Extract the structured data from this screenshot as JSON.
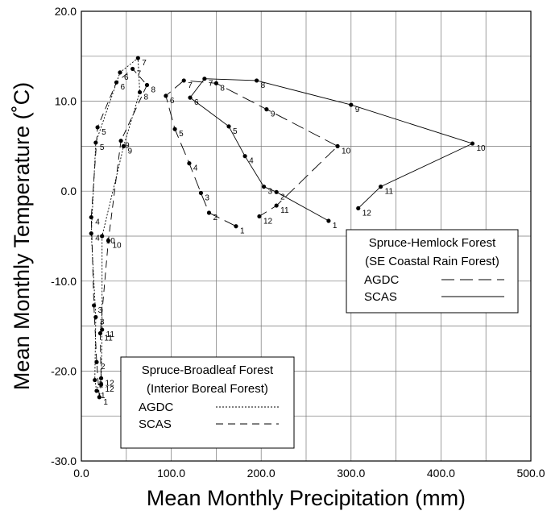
{
  "chart_data": {
    "type": "line",
    "xlabel": "Mean Monthly Precipitation (mm)",
    "ylabel": "Mean Monthly Temperature (˚C)",
    "xlim": [
      0,
      500
    ],
    "ylim": [
      -30,
      20
    ],
    "x_ticks": [
      0,
      100,
      200,
      300,
      400,
      500
    ],
    "x_tick_labels": [
      "0.0",
      "100.0",
      "200.0",
      "300.0",
      "400.0",
      "500.0"
    ],
    "y_ticks": [
      20,
      10,
      0,
      -10,
      -20,
      -30
    ],
    "y_tick_labels": [
      "20.0",
      "10.0",
      "0.0",
      "-10.0",
      "-20.0",
      "-30.0"
    ],
    "x_minor_step": 50,
    "y_minor_step": 5,
    "grid": true,
    "series": [
      {
        "name": "Spruce-Broadleaf AGDC",
        "dash": "dotted",
        "points": [
          {
            "m": "1",
            "x": 17,
            "y": -22.2
          },
          {
            "m": "2",
            "x": 15,
            "y": -21.0
          },
          {
            "m": "3",
            "x": 16,
            "y": -14.0
          },
          {
            "m": "4",
            "x": 11,
            "y": -4.7
          },
          {
            "m": "5",
            "x": 16,
            "y": 5.4
          },
          {
            "m": "6",
            "x": 43,
            "y": 13.2
          },
          {
            "m": "7",
            "x": 63,
            "y": 14.8
          },
          {
            "m": "8",
            "x": 65,
            "y": 11.0
          },
          {
            "m": "9",
            "x": 47,
            "y": 5.0
          },
          {
            "m": "10",
            "x": 23,
            "y": -5.0
          },
          {
            "m": "11",
            "x": 23,
            "y": -15.4
          },
          {
            "m": "12",
            "x": 22,
            "y": -20.8
          },
          {
            "m": "",
            "x": 17,
            "y": -22.2
          }
        ]
      },
      {
        "name": "Spruce-Broadleaf SCAS",
        "dash": "dashed",
        "points": [
          {
            "m": "1",
            "x": 20,
            "y": -22.9
          },
          {
            "m": "2",
            "x": 17,
            "y": -19.0
          },
          {
            "m": "3",
            "x": 14,
            "y": -12.7
          },
          {
            "m": "4",
            "x": 11,
            "y": -2.9
          },
          {
            "m": "5",
            "x": 18,
            "y": 7.1
          },
          {
            "m": "6",
            "x": 39,
            "y": 12.1
          },
          {
            "m": "7",
            "x": 57,
            "y": 13.6
          },
          {
            "m": "8",
            "x": 73,
            "y": 11.8
          },
          {
            "m": "9",
            "x": 44,
            "y": 5.6
          },
          {
            "m": "10",
            "x": 30,
            "y": -5.5
          },
          {
            "m": "11",
            "x": 21,
            "y": -15.8
          },
          {
            "m": "12",
            "x": 22,
            "y": -21.5
          },
          {
            "m": "",
            "x": 20,
            "y": -22.9
          }
        ]
      },
      {
        "name": "Spruce-Hemlock AGDC",
        "dash": "longdash",
        "points": [
          {
            "m": "1",
            "x": 172,
            "y": -3.9
          },
          {
            "m": "2",
            "x": 142,
            "y": -2.4
          },
          {
            "m": "3",
            "x": 133,
            "y": -0.2
          },
          {
            "m": "4",
            "x": 120,
            "y": 3.1
          },
          {
            "m": "5",
            "x": 104,
            "y": 6.9
          },
          {
            "m": "6",
            "x": 94,
            "y": 10.6
          },
          {
            "m": "7",
            "x": 114,
            "y": 12.3
          },
          {
            "m": "8",
            "x": 150,
            "y": 12.0
          },
          {
            "m": "9",
            "x": 206,
            "y": 9.1
          },
          {
            "m": "10",
            "x": 285,
            "y": 5.0
          },
          {
            "m": "11",
            "x": 217,
            "y": -1.6
          },
          {
            "m": "12",
            "x": 198,
            "y": -2.8
          }
        ]
      },
      {
        "name": "Spruce-Hemlock SCAS",
        "dash": "solid",
        "points": [
          {
            "m": "1",
            "x": 275,
            "y": -3.3
          },
          {
            "m": "2",
            "x": 217,
            "y": -0.1
          },
          {
            "m": "3",
            "x": 203,
            "y": 0.5
          },
          {
            "m": "4",
            "x": 182,
            "y": 3.9
          },
          {
            "m": "5",
            "x": 164,
            "y": 7.2
          },
          {
            "m": "6",
            "x": 121,
            "y": 10.4
          },
          {
            "m": "7",
            "x": 137,
            "y": 12.5
          },
          {
            "m": "8",
            "x": 195,
            "y": 12.3
          },
          {
            "m": "9",
            "x": 300,
            "y": 9.6
          },
          {
            "m": "10",
            "x": 435,
            "y": 5.3
          },
          {
            "m": "11",
            "x": 333,
            "y": 0.5
          },
          {
            "m": "12",
            "x": 308,
            "y": -1.9
          }
        ]
      }
    ],
    "legends": [
      {
        "position": "lower-left",
        "title_line1": "Spruce-Broadleaf Forest",
        "title_line2": "(Interior Boreal Forest)",
        "entries": [
          {
            "label": "AGDC",
            "dash": "dotted"
          },
          {
            "label": "SCAS",
            "dash": "dashed"
          }
        ]
      },
      {
        "position": "right",
        "title_line1": "Spruce-Hemlock Forest",
        "title_line2": "(SE Coastal Rain Forest)",
        "entries": [
          {
            "label": "AGDC",
            "dash": "longdash"
          },
          {
            "label": "SCAS",
            "dash": "solid"
          }
        ]
      }
    ]
  }
}
